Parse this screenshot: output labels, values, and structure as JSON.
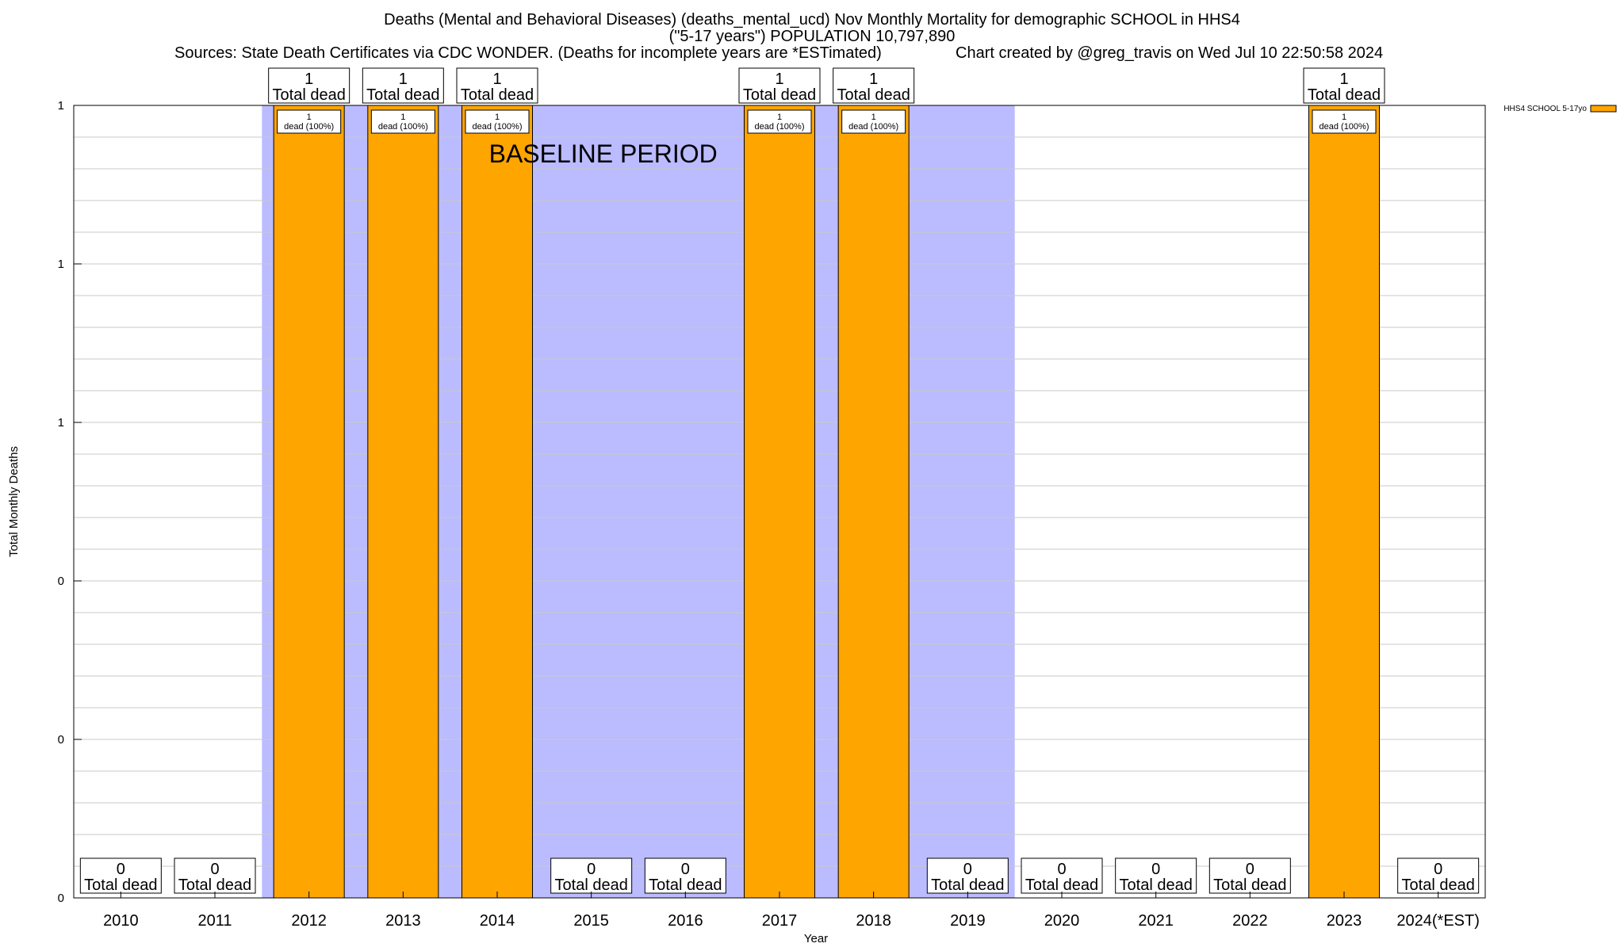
{
  "titles": {
    "line1": "Deaths (Mental and Behavioral Diseases) (deaths_mental_ucd) Nov Monthly Mortality for demographic SCHOOL in HHS4",
    "line2": "(\"5-17 years\") POPULATION 10,797,890",
    "sources": "Sources: State Death Certificates via CDC WONDER. (Deaths for incomplete years are *ESTimated)",
    "credit": "Chart created by @greg_travis on Wed Jul 10 22:50:58 2024"
  },
  "chart_data": {
    "type": "bar",
    "xlabel": "Year",
    "ylabel": "Total Monthly Deaths",
    "ylim": [
      0,
      1
    ],
    "y_tick_labels": [
      "0",
      "0",
      "0",
      "1",
      "1",
      "1"
    ],
    "categories": [
      "2010",
      "2011",
      "2012",
      "2013",
      "2014",
      "2015",
      "2016",
      "2017",
      "2018",
      "2019",
      "2020",
      "2021",
      "2022",
      "2023",
      "2024(*EST)"
    ],
    "series": [
      {
        "name": "HHS4 SCHOOL 5-17yo",
        "color": "#ffa500",
        "values": [
          0,
          0,
          1,
          1,
          1,
          0,
          0,
          1,
          1,
          0,
          0,
          0,
          0,
          1,
          0
        ]
      }
    ],
    "total_labels": [
      "0",
      "0",
      "1",
      "1",
      "1",
      "0",
      "0",
      "1",
      "1",
      "0",
      "0",
      "0",
      "0",
      "1",
      "0"
    ],
    "total_caption": "Total dead",
    "bar_labels": [
      "",
      "",
      "1\ndead (100%)",
      "1\ndead (100%)",
      "1\ndead (100%)",
      "",
      "",
      "1\ndead (100%)",
      "1\ndead (100%)",
      "",
      "",
      "",
      "",
      "1\ndead (100%)",
      ""
    ],
    "baseline_period": {
      "label": "BASELINE PERIOD",
      "from": "2012",
      "to": "2019",
      "color": "#bbbbff"
    },
    "legend_position": "top-right",
    "grid": true
  }
}
